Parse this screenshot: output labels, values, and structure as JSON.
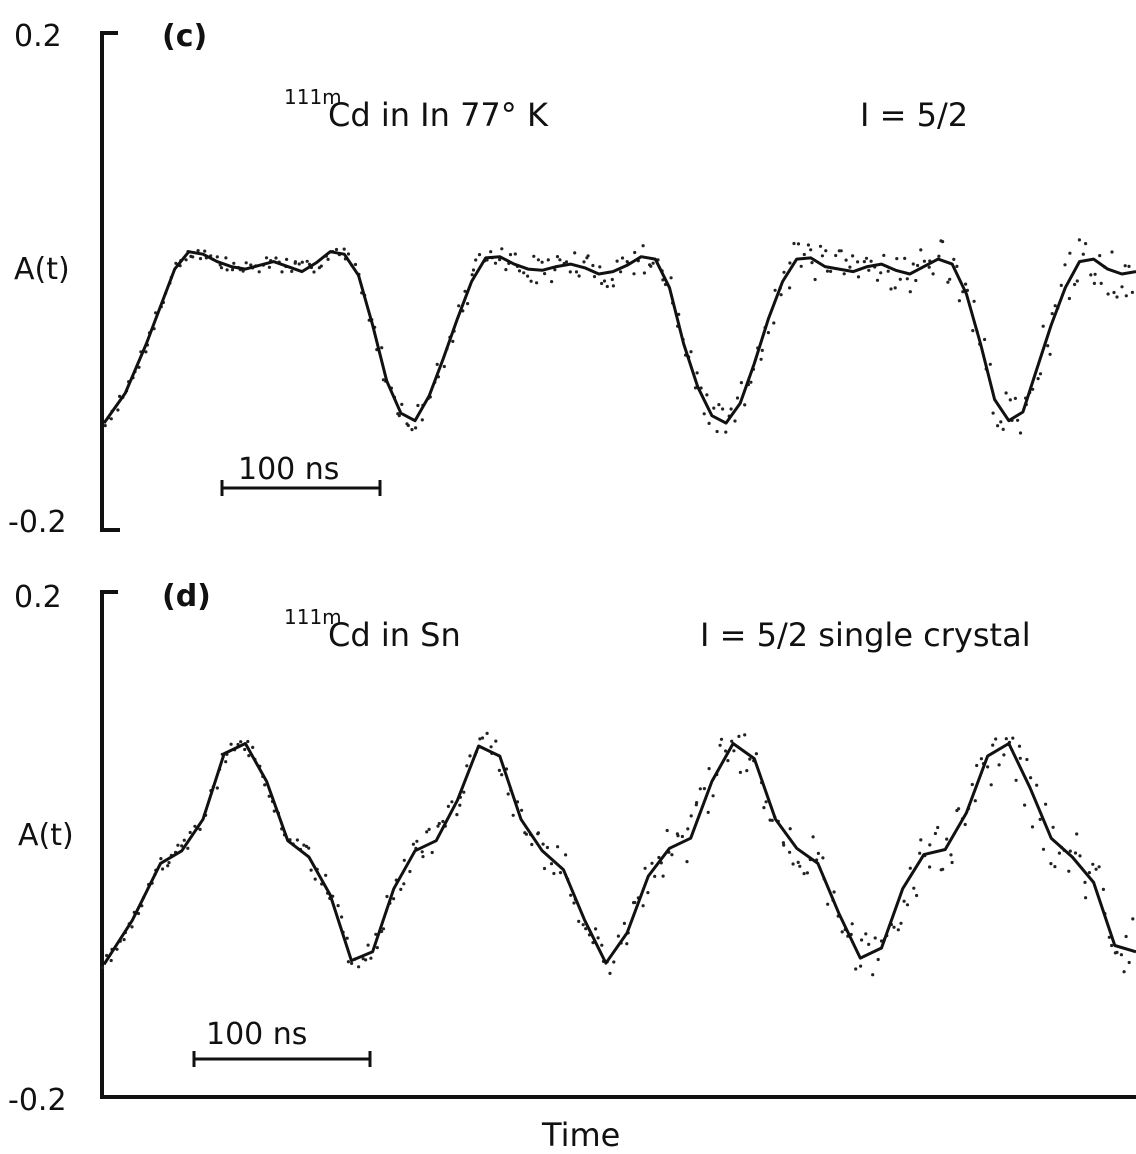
{
  "chart_data": [
    {
      "type": "line",
      "panel": "(c)",
      "title_superscript": "111m",
      "title": "Cd in In 77° K",
      "spin": "I = 5/2",
      "ylabel": "A(t)",
      "y_ticks": [
        "0.2",
        "-0.2"
      ],
      "ylim": [
        -0.2,
        0.2
      ],
      "scale_bar": "100 ns",
      "fit_curve": {
        "t": [
          0,
          15,
          30,
          40,
          50,
          60,
          70,
          80,
          90,
          100,
          110,
          120,
          130,
          140,
          150,
          160,
          170,
          180,
          190,
          200,
          210,
          220,
          230,
          240,
          250,
          260,
          270,
          280,
          290,
          300,
          310,
          320,
          330,
          340,
          350,
          360,
          370,
          380,
          390,
          400,
          410,
          420,
          430,
          440,
          450,
          460,
          470,
          480,
          490,
          500,
          510,
          520,
          530,
          540,
          550,
          560,
          570,
          580,
          590,
          600,
          610,
          620,
          630,
          640,
          650,
          660,
          670,
          680,
          690,
          700,
          710,
          720,
          730
        ],
        "A": [
          -0.114,
          -0.09,
          -0.05,
          -0.02,
          0.01,
          0.024,
          0.022,
          0.016,
          0.012,
          0.01,
          0.013,
          0.016,
          0.012,
          0.008,
          0.015,
          0.024,
          0.022,
          0.005,
          -0.035,
          -0.08,
          -0.106,
          -0.112,
          -0.092,
          -0.062,
          -0.03,
          0.0,
          0.019,
          0.02,
          0.014,
          0.01,
          0.009,
          0.012,
          0.014,
          0.011,
          0.006,
          0.008,
          0.013,
          0.02,
          0.018,
          -0.005,
          -0.05,
          -0.085,
          -0.108,
          -0.114,
          -0.098,
          -0.066,
          -0.03,
          0.0,
          0.018,
          0.019,
          0.012,
          0.01,
          0.008,
          0.012,
          0.014,
          0.009,
          0.006,
          0.012,
          0.018,
          0.014,
          -0.01,
          -0.05,
          -0.095,
          -0.112,
          -0.105,
          -0.07,
          -0.035,
          -0.005,
          0.016,
          0.018,
          0.01,
          0.006,
          0.008
        ]
      }
    },
    {
      "type": "line",
      "panel": "(d)",
      "title_superscript": "111m",
      "title": "Cd in Sn",
      "spin": "I = 5/2 single crystal",
      "ylabel": "A(t)",
      "y_ticks": [
        "0.2",
        "-0.2"
      ],
      "ylim": [
        -0.2,
        0.2
      ],
      "xlabel": "Time",
      "scale_bar": "100 ns",
      "fit_curve": {
        "t": [
          0,
          20,
          40,
          55,
          70,
          85,
          100,
          115,
          130,
          145,
          160,
          175,
          190,
          205,
          220,
          235,
          250,
          265,
          280,
          295,
          310,
          325,
          340,
          355,
          370,
          385,
          400,
          415,
          430,
          445,
          460,
          475,
          490,
          505,
          520,
          535,
          550,
          565,
          580,
          595,
          610,
          625,
          640,
          655,
          670,
          685,
          700,
          715,
          730
        ],
        "A": [
          -0.095,
          -0.06,
          -0.015,
          -0.005,
          0.02,
          0.072,
          0.08,
          0.05,
          0.003,
          -0.01,
          -0.04,
          -0.092,
          -0.085,
          -0.035,
          -0.005,
          0.003,
          0.035,
          0.078,
          0.07,
          0.02,
          -0.005,
          -0.02,
          -0.06,
          -0.094,
          -0.07,
          -0.025,
          -0.003,
          0.005,
          0.05,
          0.08,
          0.068,
          0.02,
          -0.003,
          -0.015,
          -0.055,
          -0.09,
          -0.082,
          -0.035,
          -0.008,
          -0.004,
          0.025,
          0.07,
          0.08,
          0.045,
          0.005,
          -0.01,
          -0.03,
          -0.08,
          -0.085
        ]
      }
    }
  ]
}
